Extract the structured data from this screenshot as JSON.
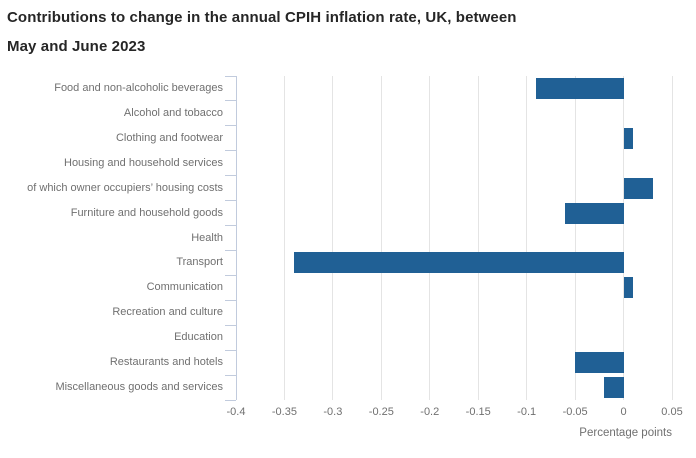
{
  "header": {
    "title": "Contributions to change in the annual CPIH inflation rate, UK, between May and June 2023",
    "title_lines": [
      "Contributions to change in the annual CPIH inflation rate, UK, between",
      "May and June 2023"
    ]
  },
  "chart_data": {
    "type": "bar",
    "orientation": "horizontal",
    "title": "Contributions to change in the annual CPIH inflation rate, UK, between May and June 2023",
    "categories": [
      "Food and non-alcoholic beverages",
      "Alcohol and tobacco",
      "Clothing and footwear",
      "Housing and household services",
      "of which owner occupiers’ housing costs",
      "Furniture and household goods",
      "Health",
      "Transport",
      "Communication",
      "Recreation and culture",
      "Education",
      "Restaurants and hotels",
      "Miscellaneous goods and services"
    ],
    "values": [
      -0.09,
      0,
      0.01,
      0,
      0.03,
      -0.06,
      0,
      -0.34,
      0.01,
      0,
      0,
      -0.05,
      -0.02
    ],
    "xlabel": "Percentage points",
    "ylabel": "",
    "xlim": [
      -0.4,
      0.05
    ],
    "xticks": [
      -0.4,
      -0.35,
      -0.3,
      -0.25,
      -0.2,
      -0.15,
      -0.1,
      -0.05,
      0,
      0.05
    ],
    "xtick_labels": [
      "-0.4",
      "-0.35",
      "-0.3",
      "-0.25",
      "-0.2",
      "-0.15",
      "-0.1",
      "-0.05",
      "0",
      "0.05"
    ],
    "grid": true,
    "legend": "none",
    "bar_color": "#206095"
  },
  "style": {
    "bar_color": "#206095",
    "axis_color": "#c1cbdd",
    "grid_color": "#e4e4e4",
    "title_color": "#262626",
    "label_color": "#707070",
    "background": "#ffffff"
  }
}
